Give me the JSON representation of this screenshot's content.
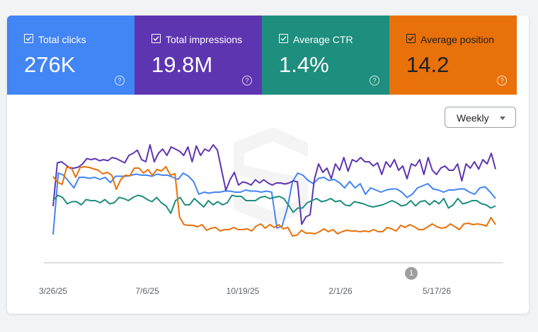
{
  "metrics": [
    {
      "label": "Total clicks",
      "value": "276K",
      "color": "#4285f4",
      "checked": true
    },
    {
      "label": "Total impressions",
      "value": "19.8M",
      "color": "#5e35b1",
      "checked": true
    },
    {
      "label": "Average CTR",
      "value": "1.4%",
      "color": "#1e8e7e",
      "checked": true
    },
    {
      "label": "Average position",
      "value": "14.2",
      "color": "#e8710a",
      "checked": true
    }
  ],
  "help_glyph": "?",
  "dropdown": {
    "label": "Weekly"
  },
  "annotation": {
    "label": "1"
  },
  "chart_data": {
    "type": "line",
    "x_tick_labels": [
      "3/26/25",
      "7/6/25",
      "10/19/25",
      "2/1/26",
      "5/17/26"
    ],
    "axis_values_shown": false,
    "series": [
      {
        "name": "Total clicks",
        "color": "#4285f4",
        "values": [
          30,
          88,
          86,
          80,
          74,
          84,
          84,
          83,
          84,
          82,
          84,
          79,
          85,
          85,
          85,
          86,
          87,
          86,
          86,
          85,
          87,
          86,
          86,
          84,
          82,
          88,
          85,
          80,
          68,
          70,
          69,
          70,
          70,
          71,
          71,
          70,
          70,
          72,
          71,
          71,
          70,
          71,
          70,
          36,
          38,
          55,
          80,
          88,
          86,
          81,
          78,
          83,
          84,
          81,
          82,
          79,
          74,
          80,
          74,
          78,
          68,
          74,
          72,
          70,
          72,
          73,
          73,
          70,
          65,
          68,
          74,
          76,
          78,
          73,
          72,
          70,
          72,
          72,
          73,
          73,
          70,
          68,
          74,
          75,
          70,
          64
        ]
      },
      {
        "name": "Total impressions",
        "color": "#5e35b1",
        "values": [
          50,
          91,
          92,
          89,
          86,
          86,
          87,
          90,
          95,
          94,
          95,
          93,
          94,
          93,
          96,
          95,
          93,
          91,
          98,
          100,
          103,
          94,
          92,
          108,
          92,
          100,
          104,
          98,
          106,
          104,
          102,
          98,
          106,
          92,
          107,
          98,
          104,
          102,
          108,
          103,
          84,
          65,
          75,
          82,
          70,
          73,
          72,
          70,
          75,
          72,
          75,
          72,
          70,
          72,
          72,
          71,
          72,
          74,
          73,
          33,
          40,
          42,
          75,
          90,
          82,
          86,
          76,
          90,
          84,
          96,
          83,
          94,
          92,
          96,
          92,
          92,
          88,
          91,
          80,
          92,
          87,
          94,
          84,
          88,
          76,
          90,
          88,
          94,
          80,
          96,
          84,
          80,
          86,
          88,
          84,
          84,
          90,
          74,
          90,
          86,
          92,
          85,
          94,
          90,
          100,
          85
        ]
      },
      {
        "name": "Average CTR",
        "color": "#1e8e7e",
        "values": [
          62,
          67,
          65,
          59,
          61,
          61,
          58,
          63,
          62,
          62,
          60,
          63,
          59,
          60,
          65,
          64,
          62,
          65,
          67,
          66,
          63,
          61,
          65,
          60,
          57,
          50,
          62,
          65,
          58,
          58,
          64,
          60,
          56,
          62,
          58,
          61,
          58,
          60,
          67,
          66,
          66,
          62,
          62,
          62,
          65,
          66,
          64,
          65,
          66,
          64,
          58,
          51,
          55,
          55,
          60,
          62,
          64,
          61,
          62,
          64,
          61,
          62,
          58,
          57,
          61,
          60,
          59,
          57,
          56,
          57,
          58,
          60,
          62,
          60,
          57,
          58,
          62,
          57,
          61,
          62,
          58,
          62,
          59,
          64,
          55,
          58,
          64,
          59,
          60,
          62,
          62,
          59,
          58,
          55,
          57
        ]
      },
      {
        "name": "Average position",
        "color": "#e8710a",
        "values": [
          26.2,
          25.4,
          25.1,
          27.5,
          27.5,
          26.1,
          27.5,
          27.6,
          27.5,
          27.3,
          27.1,
          26.6,
          26.8,
          26.4,
          24.4,
          25.8,
          26.4,
          26.3,
          27.4,
          27.4,
          26.7,
          27.2,
          26.4,
          27.2,
          27.0,
          27.6,
          26.4,
          26.6,
          20.5,
          19.4,
          19.3,
          19.3,
          19.1,
          19.4,
          18.6,
          18.9,
          19.0,
          18.5,
          18.7,
          18.7,
          19.0,
          18.7,
          18.7,
          18.8,
          18.5,
          19.2,
          19.5,
          18.9,
          19.4,
          19.0,
          19.4,
          18.8,
          19.0,
          17.8,
          17.9,
          18.6,
          18.2,
          18.2,
          18.1,
          18.4,
          18.8,
          18.4,
          18.7,
          18.1,
          18.4,
          18.6,
          18.5,
          18.5,
          18.4,
          18.5,
          18.4,
          18.7,
          18.4,
          18.4,
          19.0,
          18.8,
          18.5,
          19.3,
          19.0,
          19.4,
          19.1,
          18.7,
          18.7,
          19.1,
          19.5,
          19.1,
          18.9,
          19.0,
          19.5,
          19.1,
          18.7,
          19.5,
          19.6,
          19.4,
          19.5,
          19.4,
          19.2,
          20.4,
          19.4
        ]
      }
    ]
  }
}
